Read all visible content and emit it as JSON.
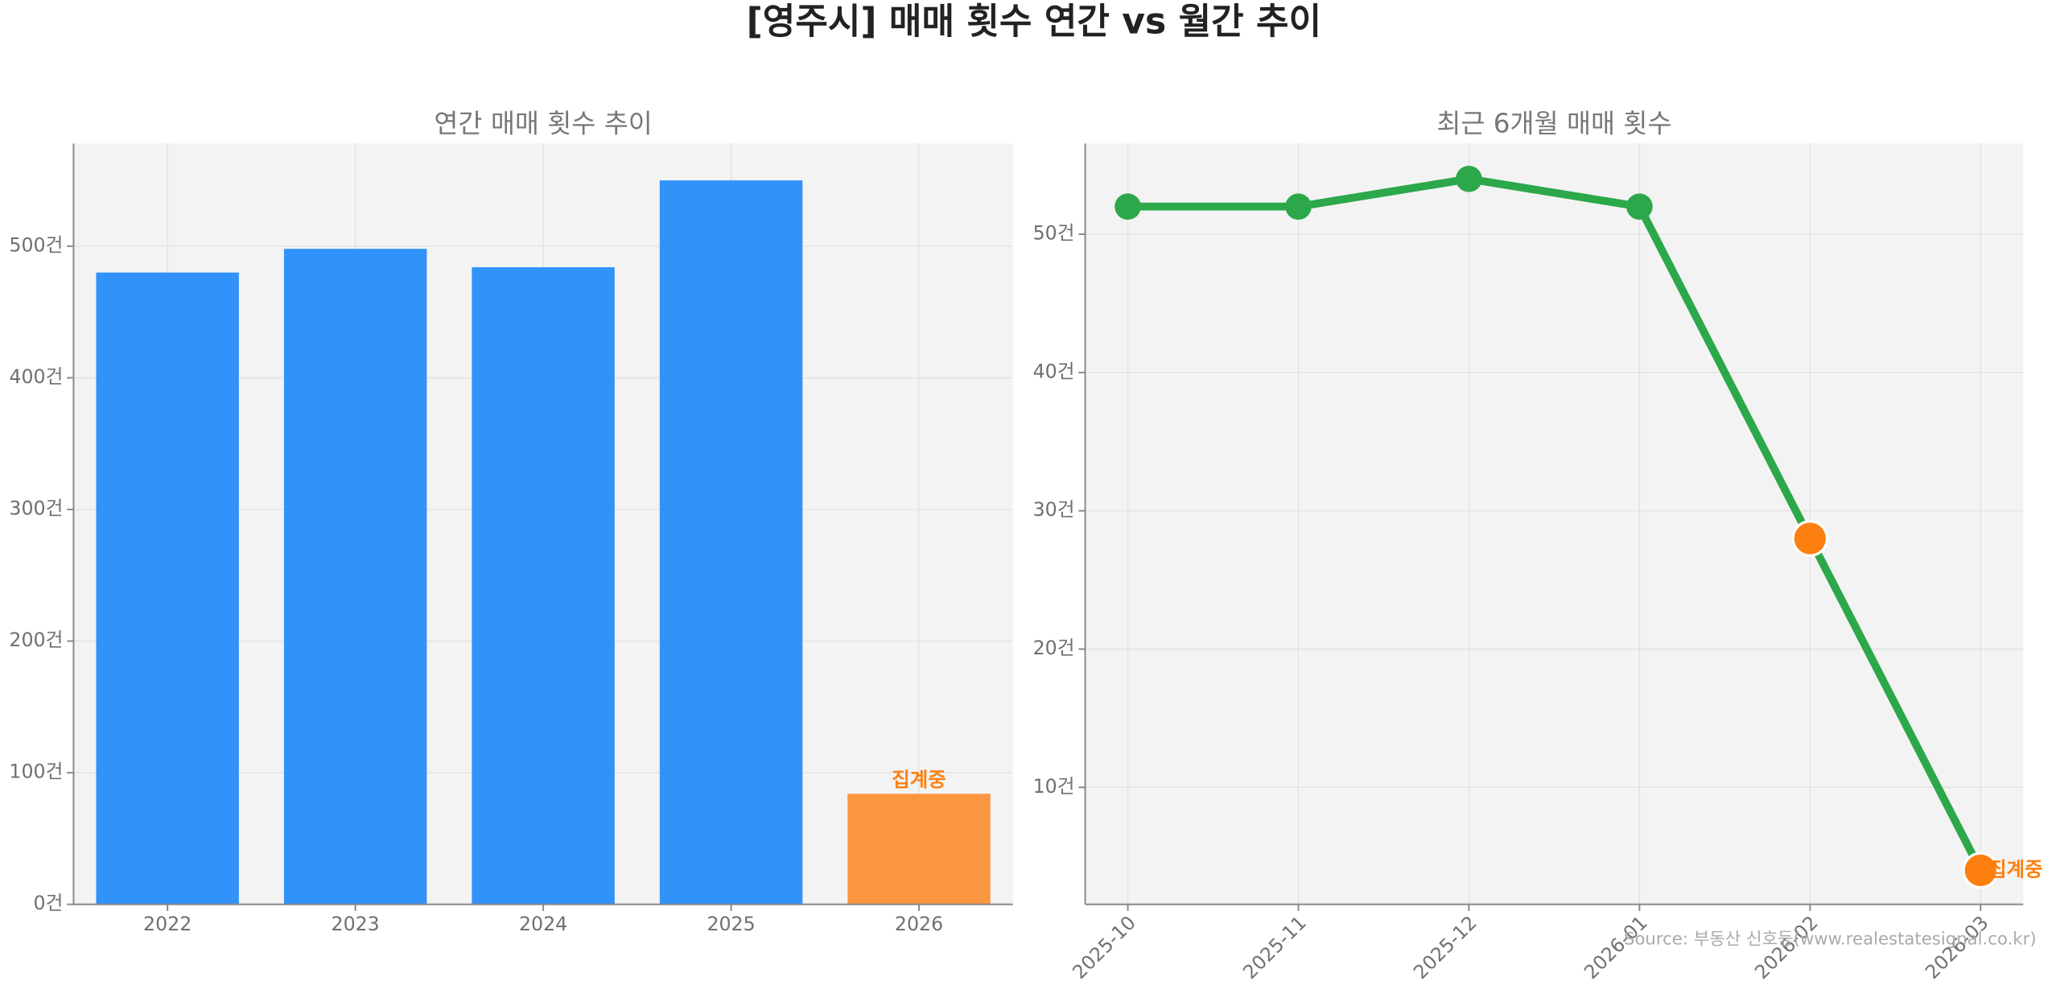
{
  "title": "[영주시] 매매 횟수 연간 vs 월간 추이",
  "source": "Source: 부동산 신호등(www.realestatesignal.co.kr)",
  "chart_data": [
    {
      "type": "bar",
      "title": "연간 매매 횟수 추이",
      "categories": [
        "2022",
        "2023",
        "2024",
        "2025",
        "2026"
      ],
      "values": [
        480,
        498,
        484,
        550,
        84
      ],
      "colors": [
        "#3192fa",
        "#3192fa",
        "#3192fa",
        "#3192fa",
        "#fa9640"
      ],
      "annotations": [
        {
          "category": "2026",
          "text": "집계중",
          "color": "#fd7f10"
        }
      ],
      "ylim": [
        0,
        578
      ],
      "yticks": [
        {
          "value": 0,
          "label": "0건"
        },
        {
          "value": 100,
          "label": "100건"
        },
        {
          "value": 200,
          "label": "200건"
        },
        {
          "value": 300,
          "label": "300건"
        },
        {
          "value": 400,
          "label": "400건"
        },
        {
          "value": 500,
          "label": "500건"
        }
      ],
      "grid": true
    },
    {
      "type": "line",
      "title": "최근 6개월 매매 횟수",
      "categories": [
        "2025-10",
        "2025-11",
        "2025-12",
        "2026-01",
        "2026-02",
        "2026-03"
      ],
      "values": [
        52,
        52,
        54,
        52,
        28,
        4
      ],
      "color": "#2ca84a",
      "point_colors": [
        "#2ca84a",
        "#2ca84a",
        "#2ca84a",
        "#2ca84a",
        "#fd7f10",
        "#fd7f10"
      ],
      "annotations": [
        {
          "category": "2026-03",
          "text": "집계중",
          "color": "#fd7f10"
        }
      ],
      "ylim": [
        1.54,
        56.56
      ],
      "yticks": [
        {
          "value": 10,
          "label": "10건"
        },
        {
          "value": 20,
          "label": "20건"
        },
        {
          "value": 30,
          "label": "30건"
        },
        {
          "value": 40,
          "label": "40건"
        },
        {
          "value": 50,
          "label": "50건"
        }
      ],
      "grid": true
    }
  ]
}
